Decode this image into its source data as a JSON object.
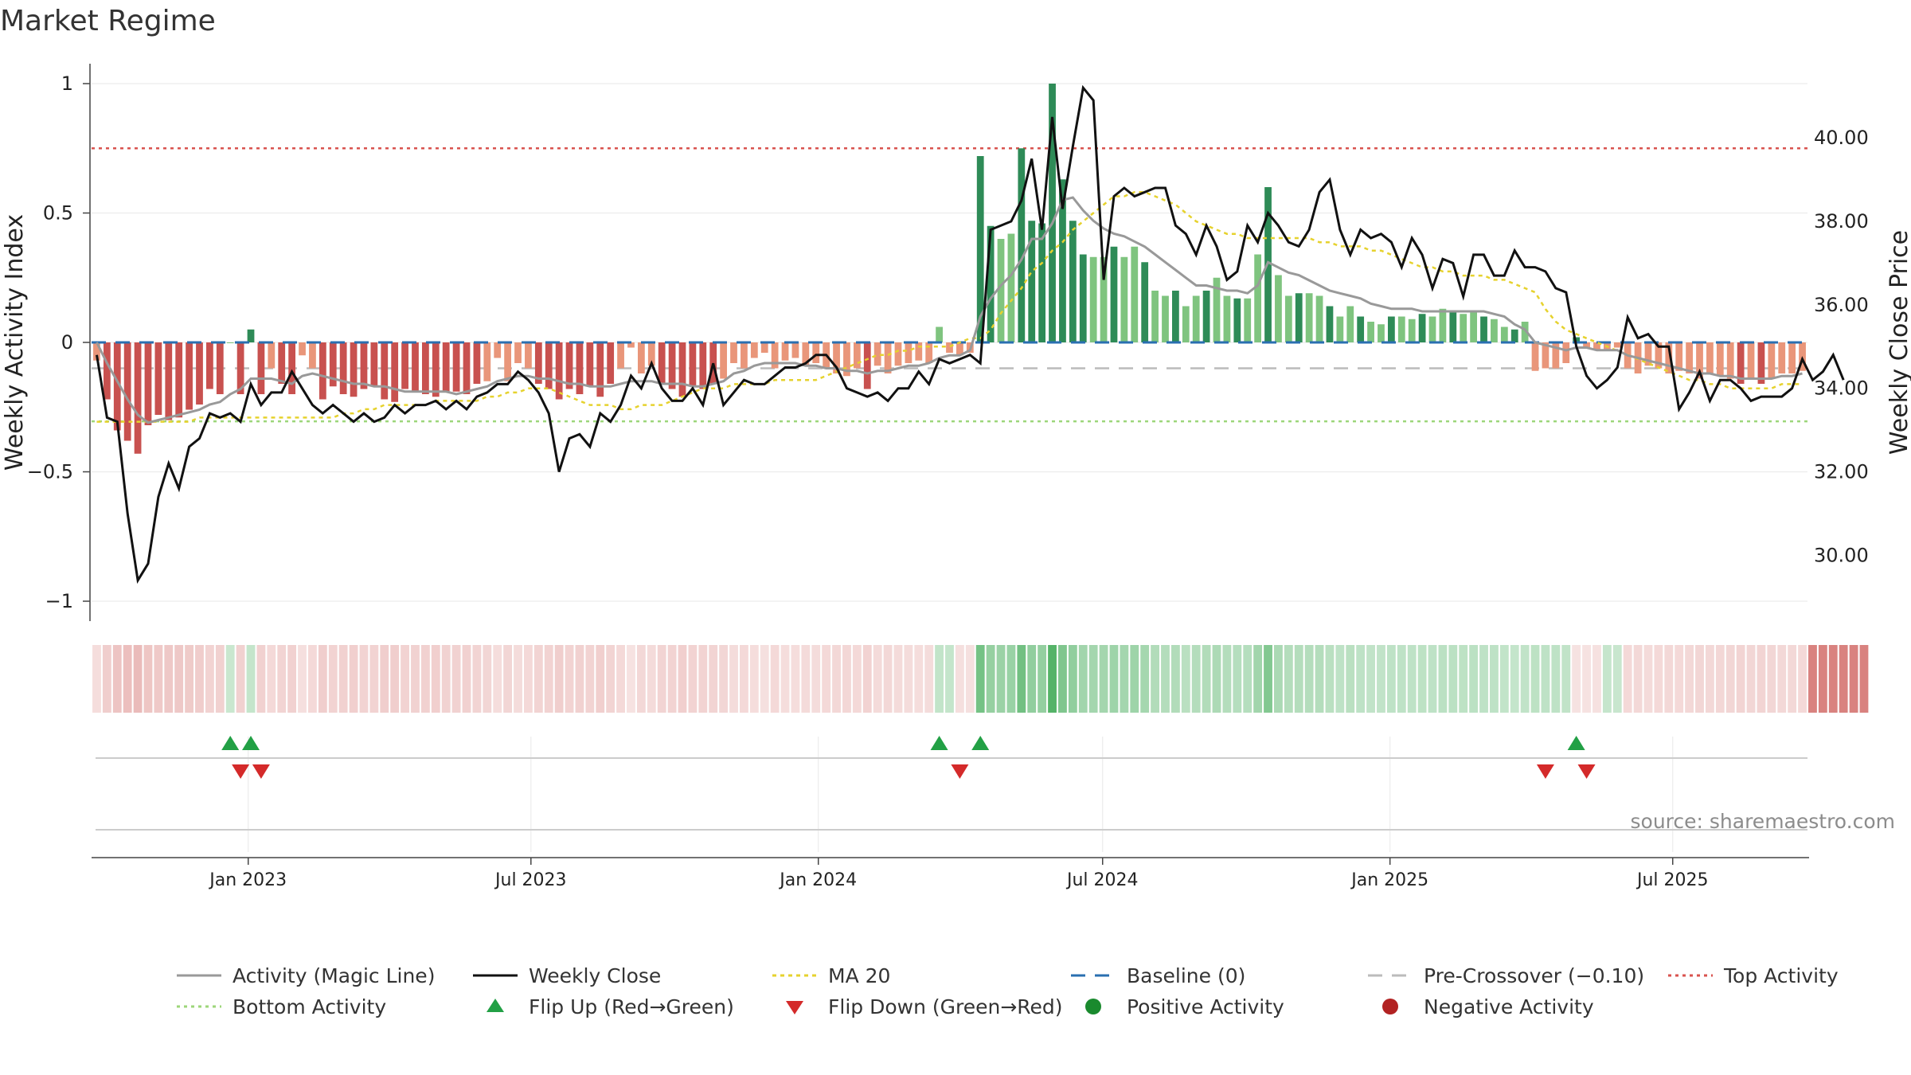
{
  "title": "Market Regime",
  "source": "source: sharemaestro.com",
  "colors": {
    "red_strong": "#c8514f",
    "red_light": "#e9967a",
    "green_strong": "#2e8b57",
    "green_light": "#7fc47f",
    "magic_line": "#999999",
    "weekly_close": "#111111",
    "ma20": "#e6d22e",
    "baseline": "#2a6fb0",
    "pre_crossover": "#bbbbbb",
    "top_activity": "#d9534f",
    "bottom_activity": "#9dd67a",
    "flip_up": "#22a045",
    "flip_down": "#d42a2a",
    "positive": "#1a8a2e",
    "negative": "#b22222"
  },
  "chart_data": {
    "type": "bar",
    "title": "Market Regime",
    "ylabel": "Weekly Activity Index",
    "ylabel_right": "Weekly Close Price",
    "ylim": [
      -1,
      1
    ],
    "ylim_right": [
      28.9,
      41.3
    ],
    "yticks": [
      "1",
      "0.5",
      "0",
      "−0.5",
      "−1"
    ],
    "yticks_right": [
      "40.00",
      "38.00",
      "36.00",
      "34.00",
      "32.00",
      "30.00"
    ],
    "xticks": [
      "Jan 2023",
      "Jul 2023",
      "Jan 2024",
      "Jul 2024",
      "Jan 2025",
      "Jul 2025"
    ],
    "x_start": "2022-09-26",
    "x_end": "2025-09-22",
    "thresholds": {
      "top": 0.75,
      "bottom": -0.305,
      "pre_crossover": -0.1,
      "baseline": 0
    },
    "activity": [
      -0.07,
      -0.22,
      -0.34,
      -0.38,
      -0.43,
      -0.32,
      -0.28,
      -0.3,
      -0.29,
      -0.26,
      -0.24,
      -0.18,
      -0.2,
      0.0,
      -0.2,
      0.05,
      -0.2,
      -0.1,
      -0.16,
      -0.2,
      -0.05,
      -0.1,
      -0.22,
      -0.17,
      -0.2,
      -0.21,
      -0.18,
      -0.17,
      -0.22,
      -0.23,
      -0.18,
      -0.19,
      -0.2,
      -0.21,
      -0.19,
      -0.19,
      -0.2,
      -0.16,
      -0.15,
      -0.06,
      -0.15,
      -0.08,
      -0.1,
      -0.16,
      -0.18,
      -0.22,
      -0.18,
      -0.2,
      -0.17,
      -0.21,
      -0.16,
      -0.1,
      -0.02,
      -0.12,
      -0.09,
      -0.16,
      -0.18,
      -0.21,
      -0.17,
      -0.18,
      -0.16,
      -0.14,
      -0.08,
      -0.1,
      -0.06,
      -0.04,
      -0.1,
      -0.07,
      -0.06,
      -0.09,
      -0.08,
      -0.1,
      -0.12,
      -0.13,
      -0.1,
      -0.18,
      -0.09,
      -0.12,
      -0.09,
      -0.08,
      -0.07,
      -0.08,
      0.06,
      -0.04,
      -0.05,
      -0.04,
      0.72,
      0.45,
      0.4,
      0.42,
      0.75,
      0.47,
      0.46,
      1.0,
      0.63,
      0.47,
      0.34,
      0.33,
      0.33,
      0.37,
      0.33,
      0.37,
      0.31,
      0.2,
      0.18,
      0.2,
      0.14,
      0.18,
      0.2,
      0.25,
      0.18,
      0.17,
      0.17,
      0.34,
      0.6,
      0.26,
      0.18,
      0.19,
      0.19,
      0.18,
      0.14,
      0.1,
      0.14,
      0.1,
      0.08,
      0.07,
      0.1,
      0.1,
      0.09,
      0.11,
      0.1,
      0.13,
      0.12,
      0.11,
      0.12,
      0.1,
      0.09,
      0.06,
      0.05,
      0.08,
      -0.11,
      -0.1,
      -0.1,
      -0.08,
      0.02,
      -0.02,
      -0.03,
      -0.03,
      -0.02,
      -0.1,
      -0.12,
      -0.09,
      -0.1,
      -0.12,
      -0.11,
      -0.12,
      -0.14,
      -0.12,
      -0.13,
      -0.14,
      -0.16,
      -0.14,
      -0.16,
      -0.14,
      -0.12,
      -0.12,
      -0.11
    ],
    "magic_line": [
      0.0,
      -0.08,
      -0.15,
      -0.22,
      -0.28,
      -0.31,
      -0.3,
      -0.29,
      -0.28,
      -0.27,
      -0.26,
      -0.24,
      -0.23,
      -0.2,
      -0.18,
      -0.14,
      -0.14,
      -0.14,
      -0.15,
      -0.16,
      -0.13,
      -0.12,
      -0.13,
      -0.14,
      -0.15,
      -0.16,
      -0.16,
      -0.17,
      -0.17,
      -0.18,
      -0.19,
      -0.19,
      -0.19,
      -0.19,
      -0.19,
      -0.2,
      -0.19,
      -0.18,
      -0.17,
      -0.15,
      -0.14,
      -0.13,
      -0.13,
      -0.14,
      -0.14,
      -0.15,
      -0.16,
      -0.16,
      -0.17,
      -0.17,
      -0.17,
      -0.16,
      -0.15,
      -0.15,
      -0.15,
      -0.16,
      -0.16,
      -0.16,
      -0.17,
      -0.17,
      -0.16,
      -0.15,
      -0.12,
      -0.11,
      -0.09,
      -0.08,
      -0.08,
      -0.08,
      -0.08,
      -0.09,
      -0.09,
      -0.1,
      -0.1,
      -0.11,
      -0.11,
      -0.12,
      -0.11,
      -0.11,
      -0.1,
      -0.09,
      -0.09,
      -0.08,
      -0.06,
      -0.05,
      -0.05,
      -0.03,
      0.1,
      0.17,
      0.22,
      0.26,
      0.32,
      0.4,
      0.4,
      0.46,
      0.55,
      0.56,
      0.51,
      0.47,
      0.44,
      0.42,
      0.41,
      0.39,
      0.37,
      0.34,
      0.31,
      0.28,
      0.25,
      0.22,
      0.22,
      0.21,
      0.2,
      0.2,
      0.19,
      0.22,
      0.31,
      0.29,
      0.27,
      0.26,
      0.24,
      0.22,
      0.2,
      0.19,
      0.18,
      0.17,
      0.15,
      0.14,
      0.13,
      0.13,
      0.13,
      0.12,
      0.12,
      0.12,
      0.12,
      0.12,
      0.12,
      0.12,
      0.11,
      0.1,
      0.07,
      0.05,
      0.0,
      -0.01,
      -0.02,
      -0.03,
      -0.02,
      -0.02,
      -0.03,
      -0.03,
      -0.03,
      -0.05,
      -0.06,
      -0.07,
      -0.08,
      -0.09,
      -0.1,
      -0.11,
      -0.12,
      -0.12,
      -0.13,
      -0.13,
      -0.14,
      -0.14,
      -0.14,
      -0.14,
      -0.13,
      -0.13,
      -0.12
    ],
    "weekly_close": [
      34.8,
      33.3,
      33.2,
      31.0,
      29.4,
      29.8,
      31.4,
      32.2,
      31.6,
      32.6,
      32.8,
      33.4,
      33.3,
      33.4,
      33.2,
      34.1,
      33.6,
      33.9,
      33.9,
      34.4,
      34.0,
      33.6,
      33.4,
      33.6,
      33.4,
      33.2,
      33.4,
      33.2,
      33.3,
      33.6,
      33.4,
      33.6,
      33.6,
      33.7,
      33.5,
      33.7,
      33.5,
      33.8,
      33.9,
      34.1,
      34.1,
      34.4,
      34.2,
      33.9,
      33.4,
      32.0,
      32.8,
      32.9,
      32.6,
      33.4,
      33.2,
      33.6,
      34.3,
      34.0,
      34.6,
      34.0,
      33.7,
      33.7,
      34.0,
      33.6,
      34.6,
      33.6,
      33.9,
      34.2,
      34.1,
      34.1,
      34.3,
      34.5,
      34.5,
      34.6,
      34.8,
      34.8,
      34.5,
      34.0,
      33.9,
      33.8,
      33.9,
      33.7,
      34.0,
      34.0,
      34.4,
      34.1,
      34.7,
      34.6,
      34.7,
      34.8,
      34.6,
      37.8,
      37.9,
      38.0,
      38.5,
      39.5,
      37.8,
      40.5,
      38.3,
      39.8,
      41.2,
      40.9,
      36.6,
      38.6,
      38.8,
      38.6,
      38.7,
      38.8,
      38.8,
      37.9,
      37.7,
      37.2,
      37.9,
      37.4,
      36.6,
      36.8,
      37.9,
      37.5,
      38.2,
      37.9,
      37.5,
      37.4,
      37.8,
      38.7,
      39.0,
      37.8,
      37.2,
      37.8,
      37.6,
      37.7,
      37.5,
      36.9,
      37.6,
      37.2,
      36.4,
      37.1,
      37.0,
      36.2,
      37.2,
      37.2,
      36.7,
      36.7,
      37.3,
      36.9,
      36.9,
      36.8,
      36.4,
      36.3,
      35.0,
      34.3,
      34.0,
      34.2,
      34.5,
      35.7,
      35.2,
      35.3,
      35.0,
      35.0,
      33.5,
      33.9,
      34.4,
      33.7,
      34.2,
      34.2,
      34.0,
      33.7,
      33.8,
      33.8,
      33.8,
      34.0,
      34.7,
      34.2,
      34.4,
      34.8,
      34.2
    ],
    "ma20": [
      33.2,
      33.2,
      33.2,
      33.2,
      33.2,
      33.2,
      33.2,
      33.2,
      33.2,
      33.2,
      33.3,
      33.3,
      33.3,
      33.3,
      33.3,
      33.3,
      33.3,
      33.3,
      33.3,
      33.3,
      33.3,
      33.3,
      33.3,
      33.3,
      33.4,
      33.4,
      33.5,
      33.5,
      33.6,
      33.6,
      33.6,
      33.6,
      33.6,
      33.7,
      33.7,
      33.7,
      33.7,
      33.7,
      33.8,
      33.8,
      33.9,
      33.9,
      34.0,
      34.0,
      34.0,
      33.9,
      33.8,
      33.7,
      33.6,
      33.6,
      33.6,
      33.5,
      33.5,
      33.6,
      33.6,
      33.6,
      33.7,
      33.8,
      33.9,
      34.0,
      34.0,
      34.0,
      34.1,
      34.1,
      34.1,
      34.1,
      34.2,
      34.2,
      34.2,
      34.2,
      34.2,
      34.3,
      34.4,
      34.5,
      34.6,
      34.7,
      34.8,
      34.8,
      34.9,
      34.9,
      35.0,
      35.0,
      35.0,
      35.0,
      35.1,
      35.2,
      35.2,
      35.4,
      35.8,
      36.1,
      36.4,
      36.8,
      37.0,
      37.3,
      37.5,
      37.8,
      38.0,
      38.2,
      38.4,
      38.6,
      38.6,
      38.7,
      38.7,
      38.6,
      38.5,
      38.4,
      38.2,
      38.0,
      37.9,
      37.8,
      37.7,
      37.7,
      37.6,
      37.6,
      37.6,
      37.6,
      37.6,
      37.6,
      37.6,
      37.5,
      37.5,
      37.4,
      37.4,
      37.4,
      37.3,
      37.3,
      37.2,
      37.1,
      37.0,
      36.9,
      36.9,
      36.8,
      36.8,
      36.7,
      36.7,
      36.7,
      36.6,
      36.6,
      36.5,
      36.4,
      36.3,
      35.9,
      35.6,
      35.4,
      35.3,
      35.2,
      35.1,
      35.0,
      34.9,
      34.8,
      34.7,
      34.6,
      34.5,
      34.4,
      34.3,
      34.2,
      34.2,
      34.1,
      34.1,
      34.0,
      34.0,
      34.0,
      34.0,
      34.0,
      34.1,
      34.1,
      34.1
    ],
    "regime": [
      "R",
      "R",
      "R",
      "R",
      "R",
      "R",
      "R",
      "R",
      "R",
      "R",
      "R",
      "R",
      "R",
      "G",
      "R",
      "G",
      "R",
      "R",
      "R",
      "R",
      "R",
      "R",
      "R",
      "R",
      "R",
      "R",
      "R",
      "R",
      "R",
      "R",
      "R",
      "R",
      "R",
      "R",
      "R",
      "R",
      "R",
      "R",
      "R",
      "R",
      "R",
      "R",
      "R",
      "R",
      "R",
      "R",
      "R",
      "R",
      "R",
      "R",
      "R",
      "R",
      "R",
      "R",
      "R",
      "R",
      "R",
      "R",
      "R",
      "R",
      "R",
      "R",
      "R",
      "R",
      "R",
      "R",
      "R",
      "R",
      "R",
      "R",
      "R",
      "R",
      "R",
      "R",
      "R",
      "R",
      "R",
      "R",
      "R",
      "R",
      "R",
      "R",
      "G",
      "G",
      "R",
      "R",
      "G",
      "G",
      "G",
      "G",
      "G",
      "G",
      "G",
      "G",
      "G",
      "G",
      "G",
      "G",
      "G",
      "G",
      "G",
      "G",
      "G",
      "G",
      "G",
      "G",
      "G",
      "G",
      "G",
      "G",
      "G",
      "G",
      "G",
      "G",
      "G",
      "G",
      "G",
      "G",
      "G",
      "G",
      "G",
      "G",
      "G",
      "G",
      "G",
      "G",
      "G",
      "G",
      "G",
      "G",
      "G",
      "G",
      "G",
      "G",
      "G",
      "G",
      "G",
      "G",
      "G",
      "G",
      "G",
      "G",
      "G",
      "G",
      "R",
      "R",
      "R",
      "G",
      "G",
      "R",
      "R",
      "R",
      "R",
      "R",
      "R",
      "R",
      "R",
      "R",
      "R",
      "R",
      "R",
      "R",
      "R",
      "R",
      "R",
      "R",
      "R",
      "R",
      "R",
      "R",
      "R",
      "R",
      "R"
    ],
    "flip_up": [
      13,
      15,
      82,
      86,
      144
    ],
    "flip_down": [
      14,
      16,
      84,
      141,
      145
    ],
    "legend": [
      [
        "Activity (Magic Line)",
        "Weekly Close",
        "MA 20",
        "Baseline (0)",
        "Pre-Crossover (−0.10)",
        "Top Activity"
      ],
      [
        "Bottom Activity",
        "Flip Up (Red→Green)",
        "Flip Down (Green→Red)",
        "Positive Activity",
        "Negative Activity"
      ]
    ],
    "legend_placement": "bottom"
  }
}
